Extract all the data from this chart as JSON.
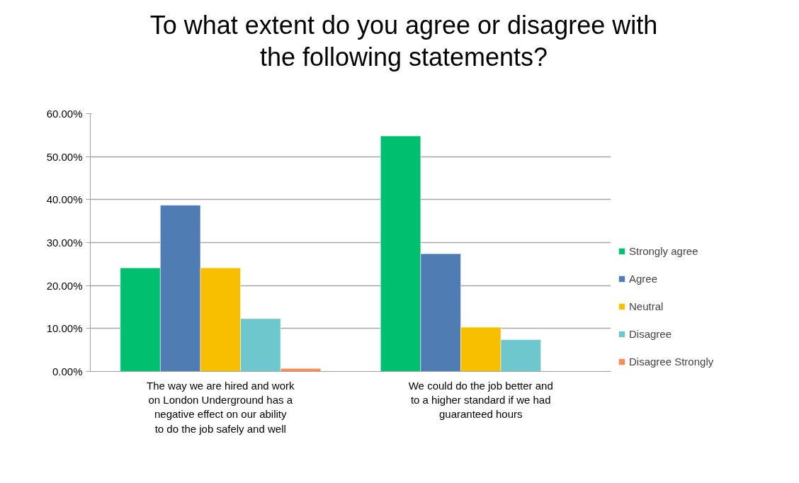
{
  "chart_data": {
    "type": "bar",
    "title": "To what extent do you agree or disagree with the following statements?",
    "categories": [
      "The way we are hired and work on London Underground has a negative effect on our ability to do the job safely and well",
      "We could do the job better and to a higher standard if we had guaranteed hours"
    ],
    "series": [
      {
        "name": "Strongly agree",
        "color": "#00bf6f",
        "values": [
          24.1,
          54.8
        ]
      },
      {
        "name": "Agree",
        "color": "#507cb4",
        "values": [
          38.7,
          27.4
        ]
      },
      {
        "name": "Neutral",
        "color": "#f8bf00",
        "values": [
          24.1,
          10.3
        ]
      },
      {
        "name": "Disagree",
        "color": "#6ec7cc",
        "values": [
          12.3,
          7.4
        ]
      },
      {
        "name": "Disagree Strongly",
        "color": "#f98b53",
        "values": [
          0.7,
          null
        ]
      }
    ],
    "ylim": [
      0,
      60
    ],
    "yticks": [
      {
        "value": 0,
        "label": "0.00%"
      },
      {
        "value": 10,
        "label": "10.00%"
      },
      {
        "value": 20,
        "label": "20.00%"
      },
      {
        "value": 30,
        "label": "30.00%"
      },
      {
        "value": 40,
        "label": "40.00%"
      },
      {
        "value": 50,
        "label": "50.00%"
      },
      {
        "value": 60,
        "label": "60.00%"
      }
    ],
    "grid": "y",
    "legend": "right"
  }
}
